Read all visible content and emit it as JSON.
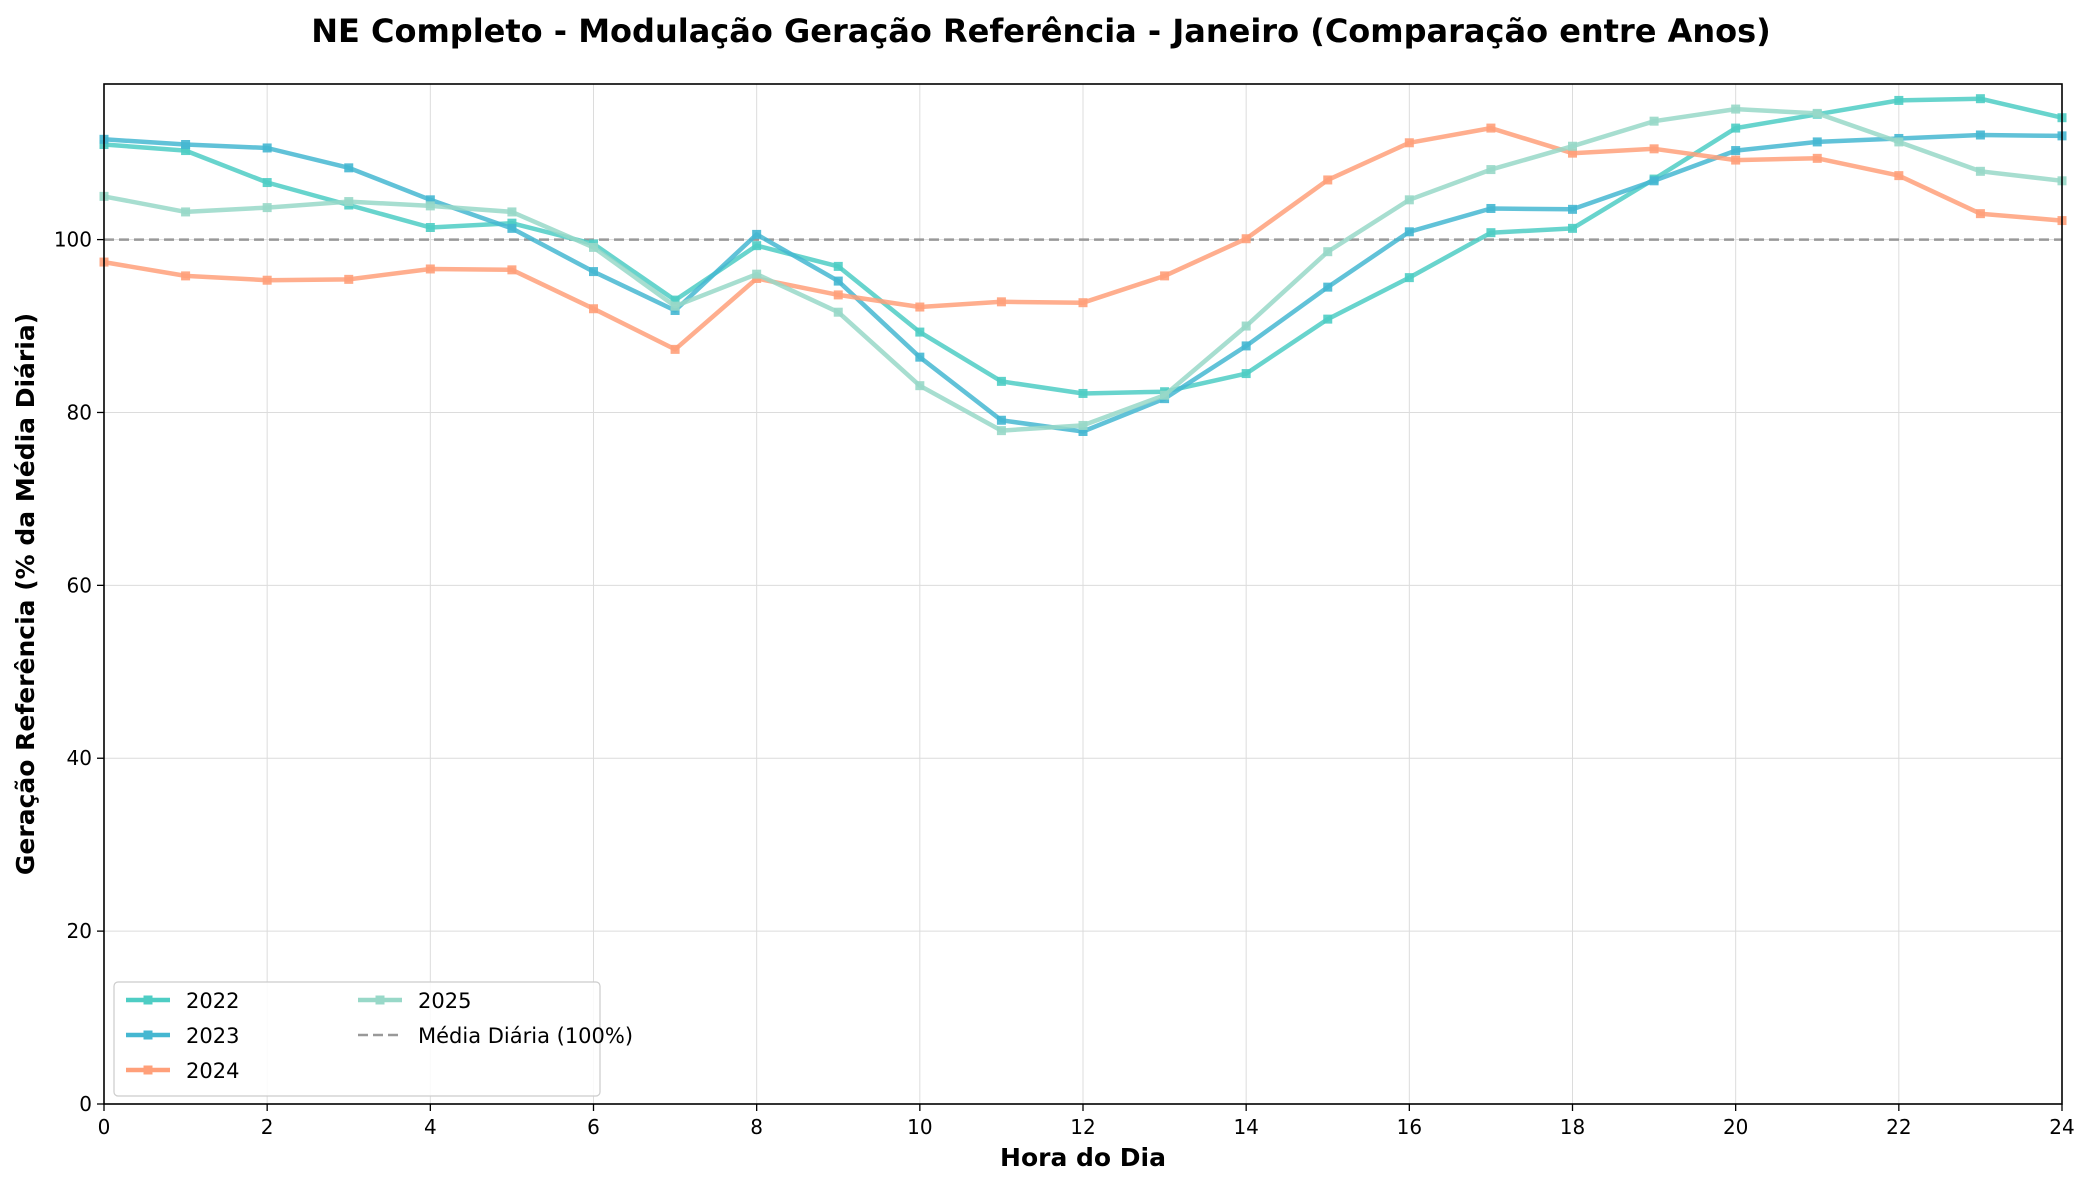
{
  "chart_data": {
    "type": "line",
    "title": "NE Completo - Modulação Geração Referência - Janeiro (Comparação entre Anos)",
    "xlabel": "Hora do Dia",
    "ylabel": "Geração Referência (% da Média Diária)",
    "xlim": [
      0,
      24
    ],
    "ylim": [
      0,
      118
    ],
    "xticks": [
      0,
      2,
      4,
      6,
      8,
      10,
      12,
      14,
      16,
      18,
      20,
      22,
      24
    ],
    "yticks": [
      0,
      20,
      40,
      60,
      80,
      100
    ],
    "grid": true,
    "legend_position": "bottom-left",
    "x": [
      0,
      1,
      2,
      3,
      4,
      5,
      6,
      7,
      8,
      9,
      10,
      11,
      12,
      13,
      14,
      15,
      16,
      17,
      18,
      19,
      20,
      21,
      22,
      23,
      24
    ],
    "series": [
      {
        "name": "2022",
        "color": "#4ecdc4",
        "values": [
          111.0,
          110.3,
          106.6,
          104.0,
          101.4,
          101.9,
          99.5,
          93.0,
          99.3,
          96.9,
          89.3,
          83.6,
          82.2,
          82.4,
          84.5,
          90.8,
          95.6,
          100.8,
          101.3,
          107.0,
          112.9,
          114.5,
          116.1,
          116.3,
          114.1
        ]
      },
      {
        "name": "2023",
        "color": "#45b7d1",
        "values": [
          111.6,
          111.0,
          110.6,
          108.3,
          104.6,
          101.3,
          96.3,
          91.8,
          100.6,
          95.2,
          86.4,
          79.1,
          77.8,
          81.6,
          87.7,
          94.5,
          100.9,
          103.6,
          103.5,
          106.8,
          110.3,
          111.3,
          111.7,
          112.1,
          112.0
        ]
      },
      {
        "name": "2024",
        "color": "#ffa07a",
        "values": [
          97.4,
          95.8,
          95.3,
          95.4,
          96.6,
          96.5,
          92.0,
          87.3,
          95.5,
          93.6,
          92.2,
          92.8,
          92.7,
          95.8,
          100.1,
          106.9,
          111.2,
          112.9,
          110.0,
          110.5,
          109.2,
          109.4,
          107.4,
          103.0,
          102.2
        ]
      },
      {
        "name": "2025",
        "color": "#98d8c8",
        "values": [
          105.0,
          103.2,
          103.7,
          104.4,
          103.9,
          103.2,
          99.1,
          92.3,
          96.0,
          91.6,
          83.1,
          77.9,
          78.5,
          82.0,
          90.0,
          98.6,
          104.6,
          108.1,
          110.8,
          113.7,
          115.1,
          114.6,
          111.3,
          107.9,
          106.8
        ]
      }
    ],
    "reference_line": {
      "name": "Média Diária (100%)",
      "value": 100,
      "color": "#999999",
      "style": "dashed"
    }
  }
}
